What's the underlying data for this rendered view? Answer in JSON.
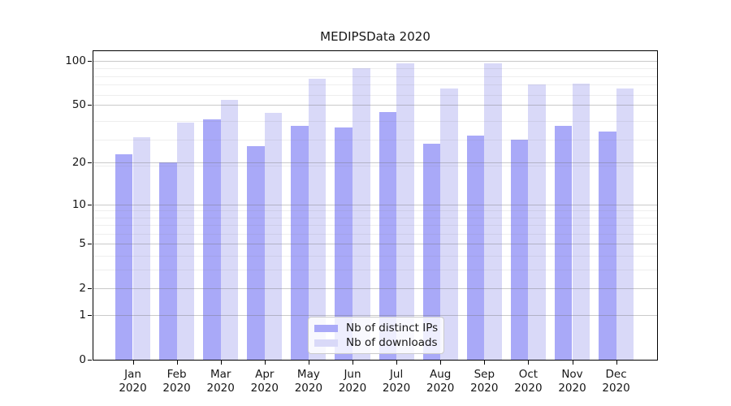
{
  "chart_data": {
    "type": "bar",
    "title": "MEDIPSData 2020",
    "categories": [
      "Jan 2020",
      "Feb 2020",
      "Mar 2020",
      "Apr 2020",
      "May 2020",
      "Jun 2020",
      "Jul 2020",
      "Aug 2020",
      "Sep 2020",
      "Oct 2020",
      "Nov 2020",
      "Dec 2020"
    ],
    "series": [
      {
        "name": "Nb of distinct IPs",
        "color": "#a9a9f8",
        "values": [
          23,
          20,
          40,
          26,
          36,
          35,
          45,
          27,
          31,
          29,
          36,
          33
        ]
      },
      {
        "name": "Nb of downloads",
        "color": "#d9d9f8",
        "values": [
          30,
          38,
          54,
          44,
          76,
          89,
          96,
          65,
          96,
          69,
          70,
          65
        ]
      }
    ],
    "xlabel": "",
    "ylabel": "",
    "yscale": "log1p",
    "ylim": [
      0,
      116
    ],
    "yticks": [
      0,
      1,
      2,
      5,
      10,
      20,
      50,
      100
    ],
    "minor_gridlines": [
      3,
      4,
      6,
      7,
      8,
      9,
      19,
      29,
      39,
      59,
      69,
      79,
      89
    ],
    "grid": true,
    "legend_position": "lower center"
  },
  "colors": {
    "spine": "#000000",
    "grid_major": "#c8c8c8",
    "grid_minor": "#ededed",
    "text": "#171717",
    "legend_border": "#cbcbcb"
  }
}
